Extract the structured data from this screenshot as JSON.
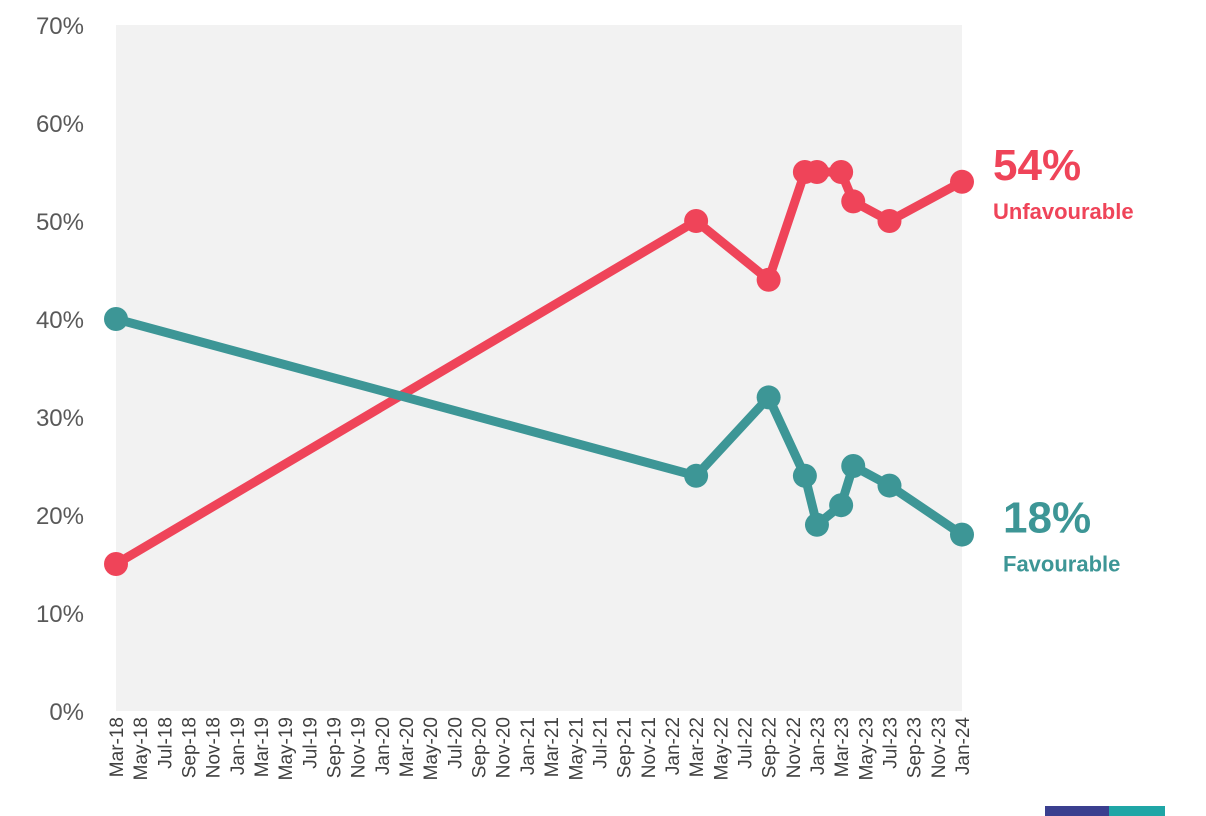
{
  "chart_data": {
    "type": "line",
    "title": "",
    "xlabel": "",
    "ylabel": "",
    "ylim": [
      0,
      70
    ],
    "y_ticks": [
      "0%",
      "10%",
      "20%",
      "30%",
      "40%",
      "50%",
      "60%",
      "70%"
    ],
    "x_tick_labels": [
      "Mar-18",
      "May-18",
      "Jul-18",
      "Sep-18",
      "Nov-18",
      "Jan-19",
      "Mar-19",
      "May-19",
      "Jul-19",
      "Sep-19",
      "Nov-19",
      "Jan-20",
      "Mar-20",
      "May-20",
      "Jul-20",
      "Sep-20",
      "Nov-20",
      "Jan-21",
      "Mar-21",
      "May-21",
      "Jul-21",
      "Sep-21",
      "Nov-21",
      "Jan-22",
      "Mar-22",
      "May-22",
      "Jul-22",
      "Sep-22",
      "Nov-22",
      "Jan-23",
      "Mar-23",
      "May-23",
      "Jul-23",
      "Sep-23",
      "Nov-23",
      "Jan-24"
    ],
    "x_range": [
      "2018-03",
      "2024-01"
    ],
    "grid": false,
    "plot_background": "#f2f2f2",
    "series": [
      {
        "name": "Unfavourable",
        "color": "#ef4459",
        "points": [
          {
            "x": "2018-03",
            "y": 15
          },
          {
            "x": "2022-03",
            "y": 50
          },
          {
            "x": "2022-09",
            "y": 44
          },
          {
            "x": "2022-12",
            "y": 55
          },
          {
            "x": "2023-01",
            "y": 55
          },
          {
            "x": "2023-03",
            "y": 55
          },
          {
            "x": "2023-04",
            "y": 52
          },
          {
            "x": "2023-07",
            "y": 50
          },
          {
            "x": "2024-01",
            "y": 54
          }
        ],
        "end_value_label": "54%",
        "end_text_label": "Unfavourable"
      },
      {
        "name": "Favourable",
        "color": "#3d9696",
        "points": [
          {
            "x": "2018-03",
            "y": 40
          },
          {
            "x": "2022-03",
            "y": 24
          },
          {
            "x": "2022-09",
            "y": 32
          },
          {
            "x": "2022-12",
            "y": 24
          },
          {
            "x": "2023-01",
            "y": 19
          },
          {
            "x": "2023-03",
            "y": 21
          },
          {
            "x": "2023-04",
            "y": 25
          },
          {
            "x": "2023-07",
            "y": 23
          },
          {
            "x": "2024-01",
            "y": 18
          }
        ],
        "end_value_label": "18%",
        "end_text_label": "Favourable"
      }
    ]
  },
  "logo": {
    "left_color": "#3a3f8f",
    "right_color": "#1fa6a6"
  }
}
